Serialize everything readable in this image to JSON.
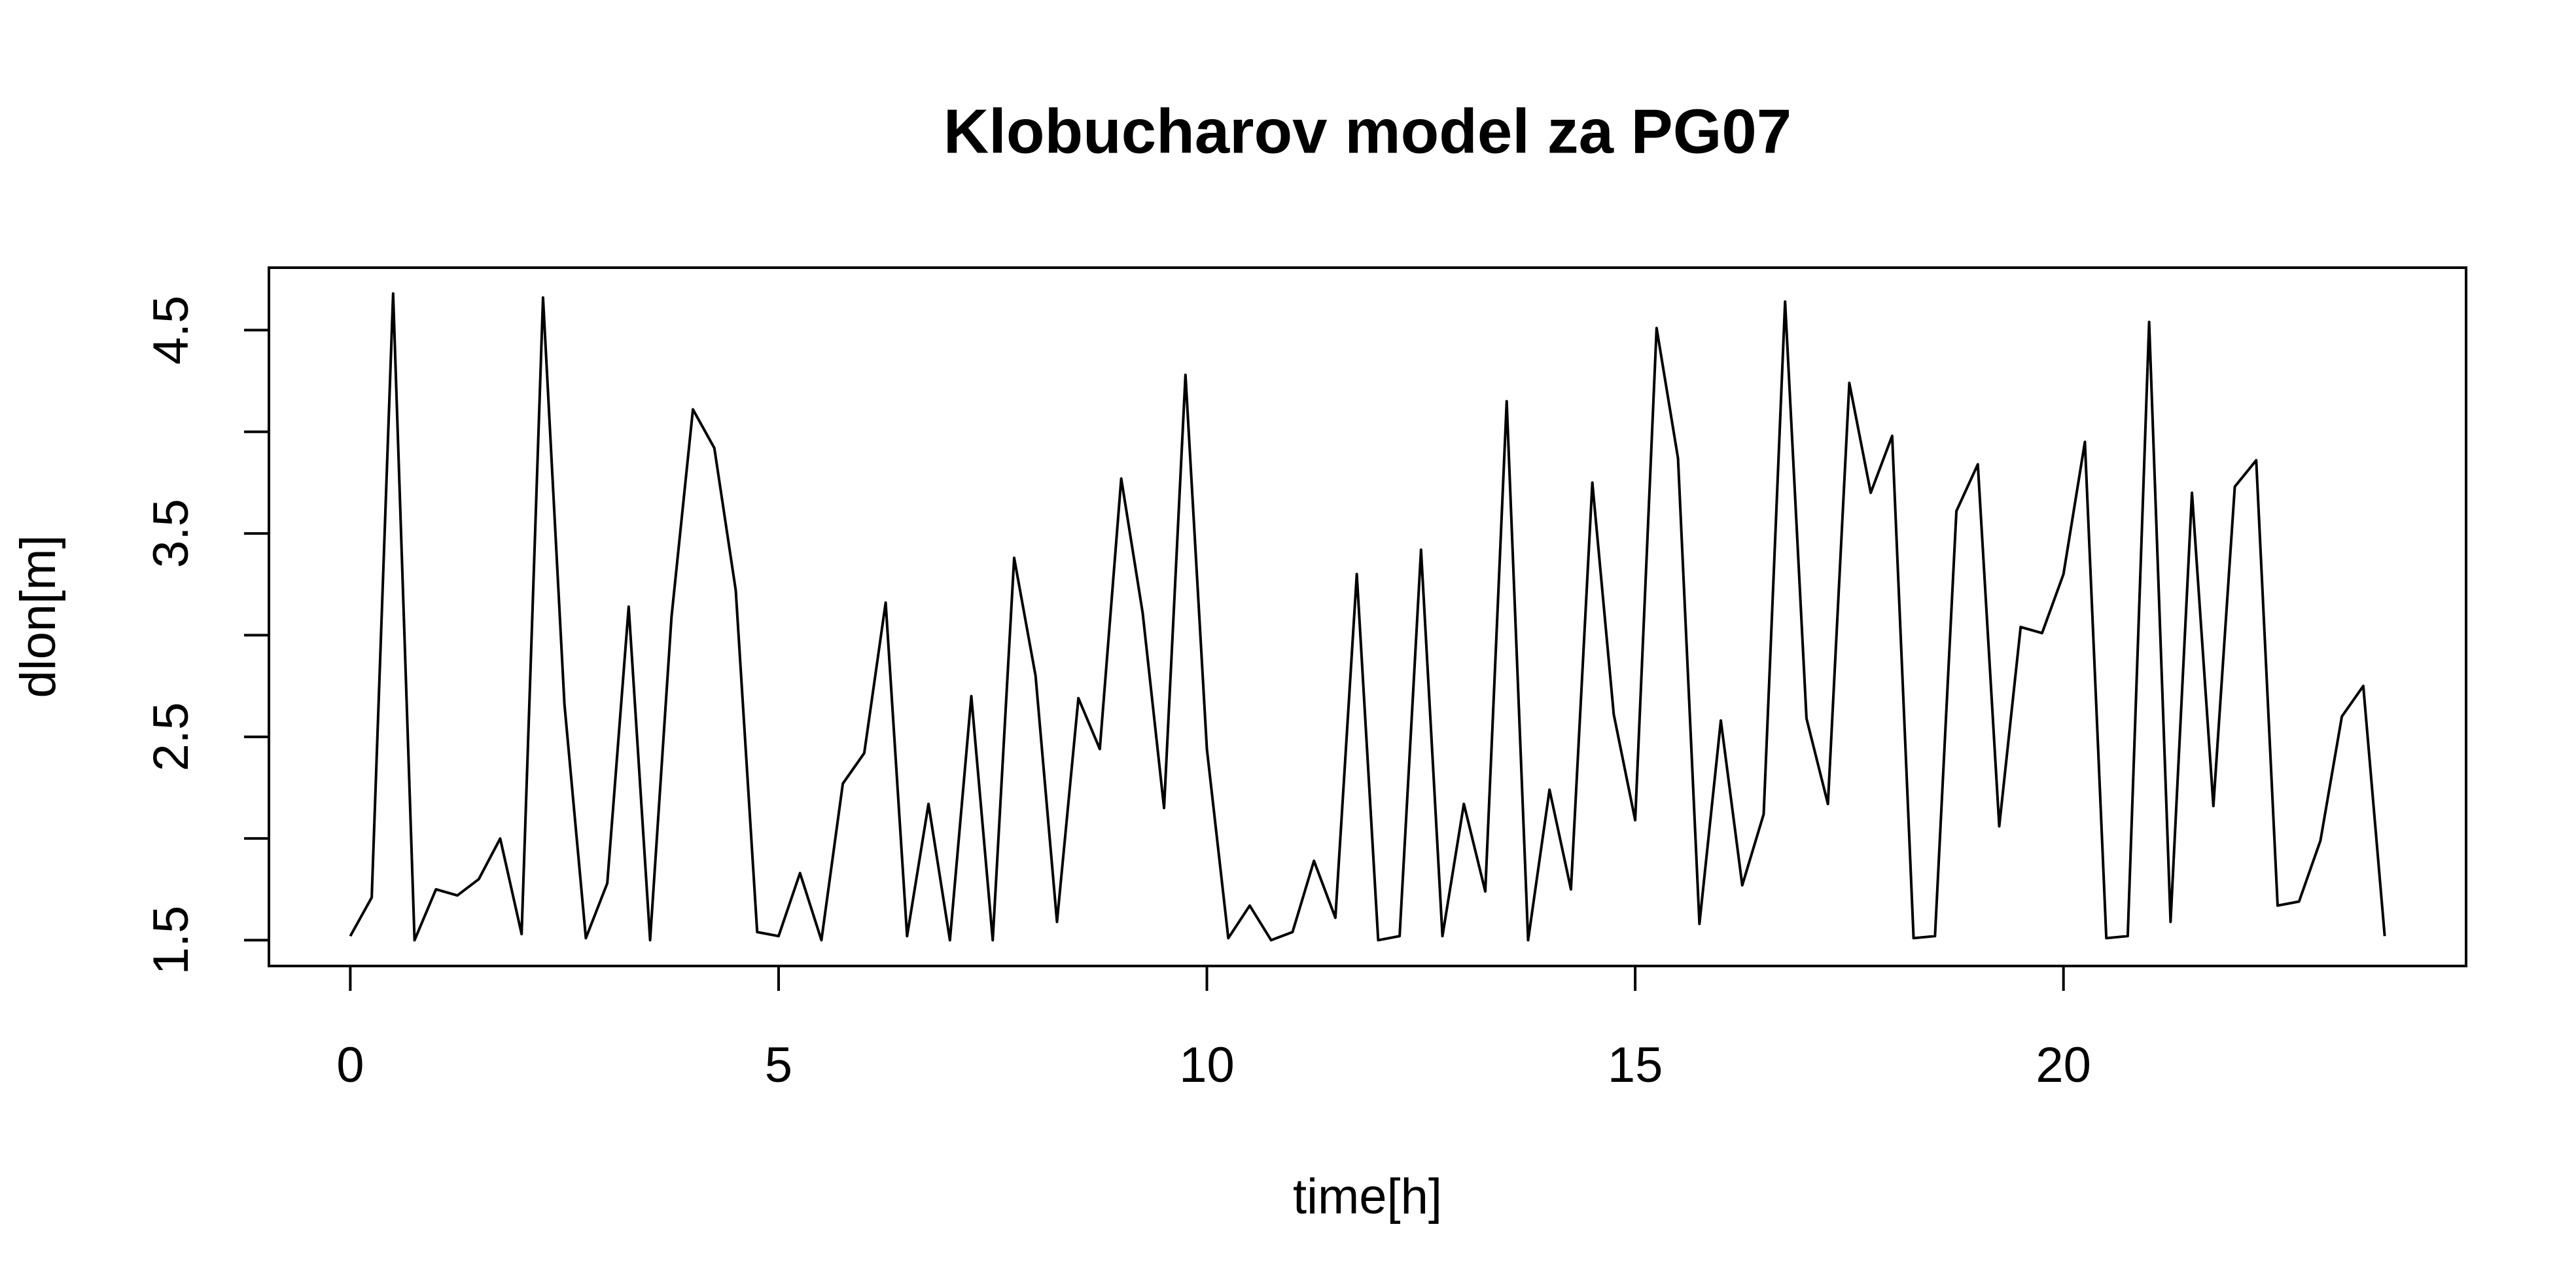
{
  "chart_data": {
    "type": "line",
    "title": "Klobucharov model za PG07",
    "x_label": "time[h]",
    "y_label": "dlon[m]",
    "color": "#000000",
    "x": [
      0,
      0.25,
      0.5,
      0.75,
      1,
      1.25,
      1.5,
      1.75,
      2,
      2.25,
      2.5,
      2.75,
      3,
      3.25,
      3.5,
      3.75,
      4,
      4.25,
      4.5,
      4.75,
      5,
      5.25,
      5.5,
      5.75,
      6,
      6.25,
      6.5,
      6.75,
      7,
      7.25,
      7.5,
      7.75,
      8,
      8.25,
      8.5,
      8.75,
      9,
      9.25,
      9.5,
      9.75,
      10,
      10.25,
      10.5,
      10.75,
      11,
      11.25,
      11.5,
      11.75,
      12,
      12.25,
      12.5,
      12.75,
      13,
      13.25,
      13.5,
      13.75,
      14,
      14.25,
      14.5,
      14.75,
      15,
      15.25,
      15.5,
      15.75,
      16,
      16.25,
      16.5,
      16.75,
      17,
      17.25,
      17.5,
      17.75,
      18,
      18.25,
      18.5,
      18.75,
      19,
      19.25,
      19.5,
      19.75,
      20,
      20.25,
      20.5,
      20.75,
      21,
      21.25,
      21.5,
      21.75,
      22,
      22.25,
      22.5,
      22.75,
      23,
      23.25,
      23.5,
      23.75
    ],
    "values": [
      1.52,
      1.71,
      4.68,
      1.5,
      1.75,
      1.72,
      1.8,
      2.0,
      1.53,
      4.66,
      2.66,
      1.51,
      1.78,
      3.14,
      1.5,
      3.09,
      4.11,
      3.92,
      3.22,
      1.54,
      1.52,
      1.83,
      1.5,
      2.27,
      2.42,
      3.16,
      1.52,
      2.17,
      1.5,
      2.7,
      1.5,
      3.38,
      2.8,
      1.59,
      2.69,
      2.44,
      3.77,
      3.11,
      2.15,
      4.28,
      2.44,
      1.51,
      1.67,
      1.5,
      1.54,
      1.89,
      1.61,
      3.3,
      1.5,
      1.52,
      3.42,
      1.52,
      2.17,
      1.74,
      4.15,
      1.5,
      2.24,
      1.75,
      3.75,
      2.61,
      2.09,
      4.51,
      3.87,
      1.58,
      2.58,
      1.77,
      2.12,
      4.64,
      2.59,
      2.17,
      4.24,
      3.7,
      3.98,
      1.51,
      1.52,
      3.61,
      3.84,
      2.06,
      3.04,
      3.01,
      3.3,
      3.95,
      1.51,
      1.52,
      4.54,
      1.59,
      3.7,
      2.16,
      3.73,
      3.86,
      1.67,
      1.69,
      1.99,
      2.6,
      2.75,
      1.52
    ],
    "xlim": [
      -0.95,
      24.7
    ],
    "ylim": [
      1.373,
      4.807
    ],
    "xticks": [
      0,
      5,
      10,
      15,
      20
    ],
    "yticks": [
      1.5,
      {
        "value": 2,
        "label": null
      },
      2.5,
      {
        "value": 3,
        "label": null
      },
      3.5,
      {
        "value": 4,
        "label": null
      },
      4.5
    ]
  }
}
